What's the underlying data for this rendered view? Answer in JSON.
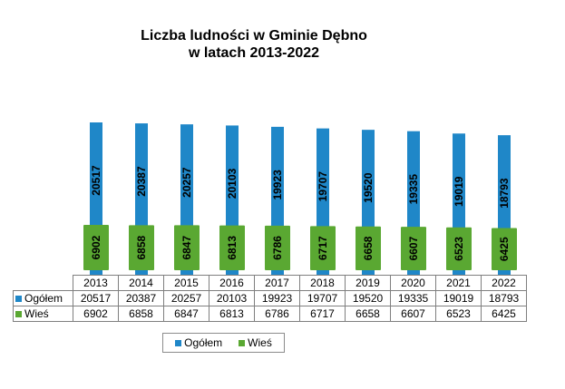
{
  "chart_data": {
    "type": "bar",
    "title": [
      "Liczba ludności w Gminie Dębno",
      "w latach 2013-2022"
    ],
    "categories": [
      "2013",
      "2014",
      "2015",
      "2016",
      "2017",
      "2018",
      "2019",
      "2020",
      "2021",
      "2022"
    ],
    "series": [
      {
        "name": "Ogółem",
        "color": "#1f87c8",
        "values": [
          20517,
          20387,
          20257,
          20103,
          19923,
          19707,
          19520,
          19335,
          19019,
          18793
        ]
      },
      {
        "name": "Wieś",
        "color": "#5aa832",
        "values": [
          6902,
          6858,
          6847,
          6813,
          6786,
          6717,
          6658,
          6607,
          6523,
          6425
        ]
      }
    ],
    "legend_position": "bottom",
    "grid": false,
    "data_table": true
  }
}
